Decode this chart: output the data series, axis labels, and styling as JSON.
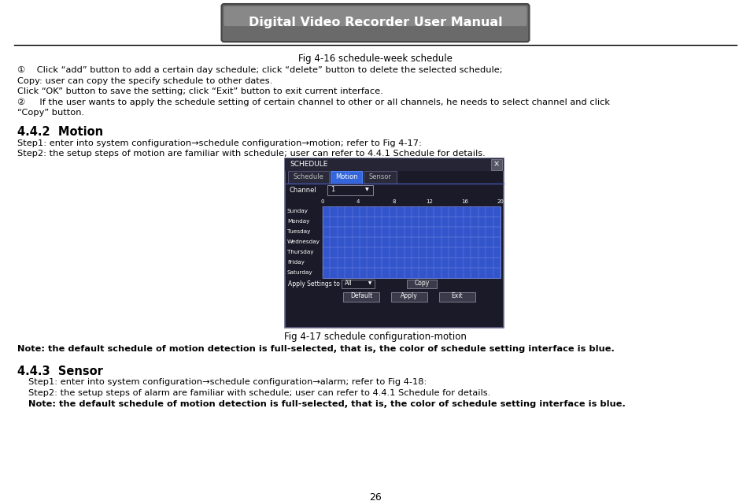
{
  "title_button": "Digital Video Recorder User Manual",
  "fig_caption_top": "Fig 4-16 schedule-week schedule",
  "line1": "①    Click “add” button to add a certain day schedule; click “delete” button to delete the selected schedule;",
  "line2": "Copy: user can copy the specify schedule to other dates.",
  "line3": "Click “OK” button to save the setting; click “Exit” button to exit current interface.",
  "line4": "②     If the user wants to apply the schedule setting of certain channel to other or all channels, he needs to select channel and click",
  "line4b": "“Copy” button.",
  "section_title": "4.4.2  Motion",
  "step1": "Step1: enter into system configuration→schedule configuration→motion; refer to Fig 4-17:",
  "step2": "Step2: the setup steps of motion are familiar with schedule; user can refer to 4.4.1 Schedule for details.",
  "fig_caption_bottom": "Fig 4-17 schedule configuration-motion",
  "note_motion": "Note: the default schedule of motion detection is full-selected, that is, the color of schedule setting interface is blue.",
  "section_sensor": "4.4.3  Sensor",
  "sensor_step1": "Step1: enter into system configuration→schedule configuration→alarm; refer to Fig 4-18:",
  "sensor_step2": "Step2: the setup steps of alarm are familiar with schedule; user can refer to 4.4.1 Schedule for details.",
  "note_sensor": "Note: the default schedule of motion detection is full-selected, that is, the color of schedule setting interface is blue.",
  "page_number": "26",
  "bg_color": "#ffffff",
  "text_color": "#000000",
  "grid_fill": "#3355cc",
  "days": [
    "Sunday",
    "Monday",
    "Tuesday",
    "Wednesday",
    "Thursday",
    "Friday",
    "Saturday"
  ],
  "hour_labels": [
    "0",
    "4",
    "8",
    "12",
    "16",
    "20"
  ],
  "tab_schedule": "Schedule",
  "tab_motion": "Motion",
  "tab_sensor": "Sensor",
  "dialog_title": "SCHEDULE"
}
